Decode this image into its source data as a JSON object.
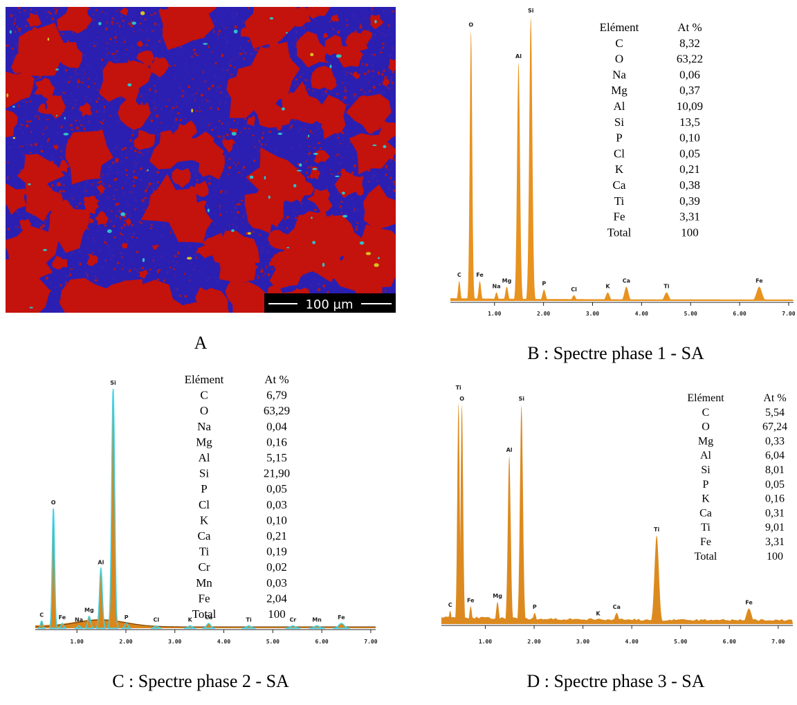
{
  "panel_a": {
    "caption": "A",
    "scale_bar": "100 µm"
  },
  "spectra": [
    {
      "caption": "B : Spectre phase 1 - SA",
      "color": "#e8921f",
      "table": {
        "header": [
          "Elément",
          "At %"
        ],
        "rows": [
          [
            "C",
            "8,32"
          ],
          [
            "O",
            "63,22"
          ],
          [
            "Na",
            "0,06"
          ],
          [
            "Mg",
            "0,37"
          ],
          [
            "Al",
            "10,09"
          ],
          [
            "Si",
            "13,5"
          ],
          [
            "P",
            "0,10"
          ],
          [
            "Cl",
            "0,05"
          ],
          [
            "K",
            "0,21"
          ],
          [
            "Ca",
            "0,38"
          ],
          [
            "Ti",
            "0,39"
          ],
          [
            "Fe",
            "3,31"
          ],
          [
            "Total",
            "100"
          ]
        ]
      },
      "xlim": [
        0.1,
        7.1
      ],
      "ylim": [
        0,
        100
      ],
      "xticks": [
        {
          "value": 1,
          "label": "1.00"
        },
        {
          "value": 2,
          "label": "2.00"
        },
        {
          "value": 3,
          "label": "3.00"
        },
        {
          "value": 4,
          "label": "4.00"
        },
        {
          "value": 5,
          "label": "5.00"
        },
        {
          "value": 6,
          "label": "6.00"
        },
        {
          "value": 7,
          "label": "7.00"
        }
      ],
      "peaks": [
        {
          "label": "C",
          "x": 0.28,
          "height": 7
        },
        {
          "label": "O",
          "x": 0.52,
          "height": 95
        },
        {
          "label": "Fe",
          "x": 0.7,
          "height": 7
        },
        {
          "label": "Na",
          "x": 1.04,
          "height": 3
        },
        {
          "label": "Mg",
          "x": 1.25,
          "height": 5
        },
        {
          "label": "Al",
          "x": 1.49,
          "height": 84
        },
        {
          "label": "Si",
          "x": 1.74,
          "height": 100
        },
        {
          "label": "P",
          "x": 2.01,
          "height": 4
        },
        {
          "label": "Cl",
          "x": 2.62,
          "height": 2
        },
        {
          "label": "K",
          "x": 3.31,
          "height": 3
        },
        {
          "label": "Ca",
          "x": 3.69,
          "height": 5
        },
        {
          "label": "Ti",
          "x": 4.51,
          "height": 3
        },
        {
          "label": "Fe",
          "x": 6.4,
          "height": 5
        }
      ]
    },
    {
      "caption": "C : Spectre phase 2 - SA",
      "color": "#d9861c",
      "outline": "#3fd3e6",
      "table": {
        "header": [
          "Elément",
          "At %"
        ],
        "rows": [
          [
            "C",
            "6,79"
          ],
          [
            "O",
            "63,29"
          ],
          [
            "Na",
            "0,04"
          ],
          [
            "Mg",
            "0,16"
          ],
          [
            "Al",
            "5,15"
          ],
          [
            "Si",
            "21,90"
          ],
          [
            "P",
            "0,05"
          ],
          [
            "Cl",
            "0,03"
          ],
          [
            "K",
            "0,10"
          ],
          [
            "Ca",
            "0,21"
          ],
          [
            "Ti",
            "0,19"
          ],
          [
            "Cr",
            "0,02"
          ],
          [
            "Mn",
            "0,03"
          ],
          [
            "Fe",
            "2,04"
          ],
          [
            "Total",
            "100"
          ]
        ]
      },
      "xlim": [
        0.15,
        7.1
      ],
      "ylim": [
        0,
        100
      ],
      "xticks": [
        {
          "value": 1,
          "label": "1.00"
        },
        {
          "value": 2,
          "label": "2.00"
        },
        {
          "value": 3,
          "label": "3.00"
        },
        {
          "value": 4,
          "label": "4.00"
        },
        {
          "value": 5,
          "label": "5.00"
        },
        {
          "value": 6,
          "label": "6.00"
        },
        {
          "value": 7,
          "label": "7.00"
        }
      ],
      "peaks": [
        {
          "label": "C",
          "x": 0.28,
          "height": 3
        },
        {
          "label": "O",
          "x": 0.52,
          "height": 50
        },
        {
          "label": "Fe",
          "x": 0.7,
          "height": 2
        },
        {
          "label": "Na",
          "x": 1.04,
          "height": 1
        },
        {
          "label": "Mg",
          "x": 1.25,
          "height": 5
        },
        {
          "label": "Al",
          "x": 1.49,
          "height": 25
        },
        {
          "label": "Si",
          "x": 1.74,
          "height": 100
        },
        {
          "label": "P",
          "x": 2.01,
          "height": 2
        },
        {
          "label": "Cl",
          "x": 2.62,
          "height": 1
        },
        {
          "label": "K",
          "x": 3.31,
          "height": 1
        },
        {
          "label": "Ca",
          "x": 3.69,
          "height": 2
        },
        {
          "label": "Ti",
          "x": 4.51,
          "height": 1
        },
        {
          "label": "Cr",
          "x": 5.41,
          "height": 1
        },
        {
          "label": "Mn",
          "x": 5.9,
          "height": 1
        },
        {
          "label": "Fe",
          "x": 6.4,
          "height": 2
        }
      ]
    },
    {
      "caption": "D : Spectre phase 3 - SA",
      "color": "#dc8a1f",
      "table": {
        "header": [
          "Elément",
          "At %"
        ],
        "rows": [
          [
            "C",
            "5,54"
          ],
          [
            "O",
            "67,24"
          ],
          [
            "Mg",
            "0,33"
          ],
          [
            "Al",
            "6,04"
          ],
          [
            "Si",
            "8,01"
          ],
          [
            "P",
            "0,05"
          ],
          [
            "K",
            "0,16"
          ],
          [
            "Ca",
            "0,31"
          ],
          [
            "Ti",
            "9,01"
          ],
          [
            "Fe",
            "3,31"
          ],
          [
            "Total",
            "100"
          ]
        ]
      },
      "xlim": [
        0.1,
        7.3
      ],
      "ylim": [
        0,
        100
      ],
      "xticks": [
        {
          "value": 1,
          "label": "1.00"
        },
        {
          "value": 2,
          "label": "2.00"
        },
        {
          "value": 3,
          "label": "3.00"
        },
        {
          "value": 4,
          "label": "4.00"
        },
        {
          "value": 5,
          "label": "5.00"
        },
        {
          "value": 6,
          "label": "6.00"
        },
        {
          "value": 7,
          "label": "7.00"
        }
      ],
      "peaks": [
        {
          "label": "C",
          "x": 0.28,
          "height": 6
        },
        {
          "label": "Ti",
          "x": 0.45,
          "height": 100
        },
        {
          "label": "O",
          "x": 0.52,
          "height": 99
        },
        {
          "label": "Fe",
          "x": 0.7,
          "height": 8
        },
        {
          "label": "Mg",
          "x": 1.25,
          "height": 10
        },
        {
          "label": "Al",
          "x": 1.49,
          "height": 76
        },
        {
          "label": "Si",
          "x": 1.74,
          "height": 99
        },
        {
          "label": "P",
          "x": 2.01,
          "height": 5
        },
        {
          "label": "K",
          "x": 3.31,
          "height": 2
        },
        {
          "label": "Ca",
          "x": 3.69,
          "height": 5
        },
        {
          "label": "Ti",
          "x": 4.51,
          "height": 40
        },
        {
          "label": "Fe",
          "x": 6.4,
          "height": 7
        }
      ]
    }
  ]
}
